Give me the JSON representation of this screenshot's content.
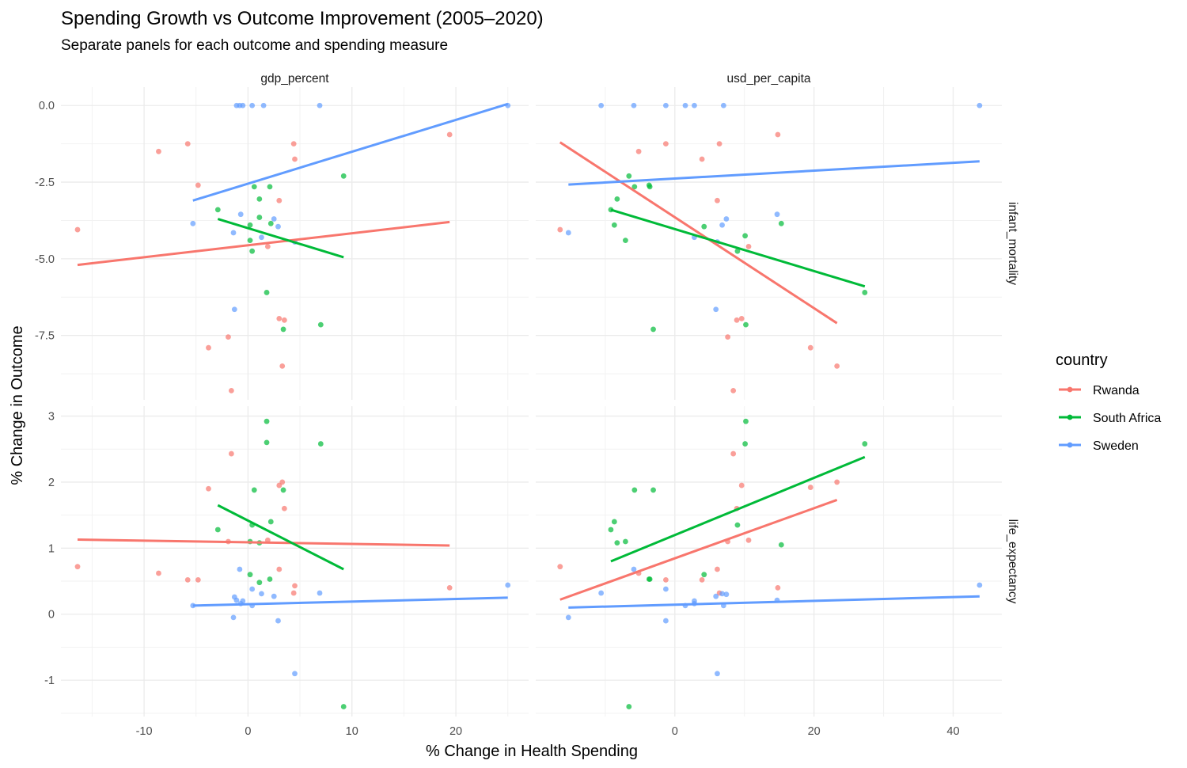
{
  "chart_data": {
    "type": "scatter",
    "title": "Spending Growth vs Outcome Improvement (2005–2020)",
    "subtitle": "Separate panels for each outcome and spending measure",
    "xlabel": "% Change in Health Spending",
    "ylabel": "% Change in Outcome",
    "grid": true,
    "legend": {
      "title": "country",
      "placement": "right",
      "entries": [
        {
          "name": "Rwanda",
          "color": "#F8766D"
        },
        {
          "name": "South Africa",
          "color": "#00BA38"
        },
        {
          "name": "Sweden",
          "color": "#619CFF"
        }
      ]
    },
    "columns": [
      {
        "strip": "gdp_percent",
        "xlim": [
          -18,
          27
        ],
        "xticks": [
          -10,
          0,
          10,
          20
        ],
        "xtick_labels": [
          "-10",
          "0",
          "10",
          "20"
        ]
      },
      {
        "strip": "usd_per_capita",
        "xlim": [
          -20,
          47
        ],
        "xticks": [
          0,
          20,
          40
        ],
        "xtick_labels": [
          "0",
          "20",
          "40"
        ]
      }
    ],
    "rows": [
      {
        "strip": "infant_mortality",
        "ylim": [
          -9.6,
          0.6
        ],
        "yticks": [
          0,
          -2.5,
          -5,
          -7.5
        ],
        "ytick_labels": [
          "0.0",
          "-2.5",
          "-5.0",
          "-7.5"
        ]
      },
      {
        "strip": "life_expectancy",
        "ylim": [
          -1.55,
          3.15
        ],
        "yticks": [
          3,
          2,
          1,
          0,
          -1
        ],
        "ytick_labels": [
          "3",
          "2",
          "1",
          "0",
          "-1"
        ]
      }
    ],
    "panels": [
      {
        "col": 0,
        "row": 0,
        "series": [
          {
            "name": "Rwanda",
            "points": [
              [
                -16.4,
                -4.05
              ],
              [
                -8.6,
                -1.5
              ],
              [
                -5.8,
                -1.25
              ],
              [
                -4.8,
                -2.6
              ],
              [
                -3.8,
                -7.9
              ],
              [
                -1.9,
                -7.55
              ],
              [
                -1.6,
                -9.3
              ],
              [
                1.9,
                -4.6
              ],
              [
                3.0,
                -3.1
              ],
              [
                3.0,
                -6.95
              ],
              [
                3.3,
                -8.5
              ],
              [
                3.5,
                -7.0
              ],
              [
                4.4,
                -1.25
              ],
              [
                4.5,
                -1.75
              ],
              [
                19.4,
                -0.95
              ]
            ],
            "fit": [
              [
                -16.4,
                -5.2
              ],
              [
                19.4,
                -3.8
              ]
            ]
          },
          {
            "name": "South Africa",
            "points": [
              [
                -2.9,
                -3.4
              ],
              [
                0.2,
                -3.9
              ],
              [
                0.2,
                -4.4
              ],
              [
                0.4,
                -4.75
              ],
              [
                0.6,
                -2.65
              ],
              [
                1.1,
                -3.05
              ],
              [
                1.1,
                -3.65
              ],
              [
                1.8,
                -6.1
              ],
              [
                2.1,
                -2.65
              ],
              [
                2.2,
                -3.85
              ],
              [
                3.4,
                -7.3
              ],
              [
                7.0,
                -7.15
              ],
              [
                9.2,
                -2.3
              ]
            ],
            "fit": [
              [
                -2.9,
                -3.7
              ],
              [
                9.2,
                -4.95
              ]
            ]
          },
          {
            "name": "Sweden",
            "points": [
              [
                -5.3,
                -3.85
              ],
              [
                -1.4,
                -4.15
              ],
              [
                -1.3,
                -6.65
              ],
              [
                -1.1,
                0.0
              ],
              [
                -0.8,
                0.0
              ],
              [
                -0.7,
                -3.55
              ],
              [
                -0.5,
                0.0
              ],
              [
                0.4,
                0.0
              ],
              [
                1.3,
                -4.3
              ],
              [
                1.5,
                0.0
              ],
              [
                2.5,
                -3.7
              ],
              [
                2.9,
                -3.95
              ],
              [
                4.5,
                -4.45
              ],
              [
                6.9,
                0.0
              ],
              [
                25.0,
                0.0
              ]
            ],
            "fit": [
              [
                -5.3,
                -3.1
              ],
              [
                25.0,
                0.05
              ]
            ]
          }
        ]
      },
      {
        "col": 1,
        "row": 0,
        "series": [
          {
            "name": "Rwanda",
            "points": [
              [
                -16.5,
                -4.05
              ],
              [
                -5.2,
                -1.5
              ],
              [
                -1.3,
                -1.25
              ],
              [
                3.9,
                -1.75
              ],
              [
                6.1,
                -3.1
              ],
              [
                6.4,
                -1.25
              ],
              [
                7.6,
                -7.55
              ],
              [
                8.4,
                -9.3
              ],
              [
                8.9,
                -7.0
              ],
              [
                9.6,
                -6.95
              ],
              [
                10.6,
                -4.6
              ],
              [
                14.8,
                -0.95
              ],
              [
                19.5,
                -7.9
              ],
              [
                23.3,
                -8.5
              ]
            ],
            "fit": [
              [
                -16.5,
                -1.2
              ],
              [
                23.3,
                -7.1
              ]
            ]
          },
          {
            "name": "South Africa",
            "points": [
              [
                -9.2,
                -3.4
              ],
              [
                -8.7,
                -3.9
              ],
              [
                -8.3,
                -3.05
              ],
              [
                -7.1,
                -4.4
              ],
              [
                -6.6,
                -2.3
              ],
              [
                -5.8,
                -2.65
              ],
              [
                -3.7,
                -2.6
              ],
              [
                -3.6,
                -2.65
              ],
              [
                -3.1,
                -7.3
              ],
              [
                4.2,
                -3.95
              ],
              [
                9.0,
                -4.75
              ],
              [
                10.1,
                -4.25
              ],
              [
                10.2,
                -7.15
              ],
              [
                15.3,
                -3.85
              ],
              [
                27.3,
                -6.1
              ]
            ],
            "fit": [
              [
                -9.2,
                -3.4
              ],
              [
                27.3,
                -5.9
              ]
            ]
          },
          {
            "name": "Sweden",
            "points": [
              [
                -15.3,
                -4.15
              ],
              [
                -10.6,
                0.0
              ],
              [
                -5.9,
                0.0
              ],
              [
                -1.3,
                0.0
              ],
              [
                1.5,
                0.0
              ],
              [
                2.8,
                0.0
              ],
              [
                2.8,
                -4.3
              ],
              [
                5.9,
                -6.65
              ],
              [
                6.1,
                -4.45
              ],
              [
                6.8,
                -3.9
              ],
              [
                7.0,
                0.0
              ],
              [
                7.4,
                -3.7
              ],
              [
                14.7,
                -3.55
              ],
              [
                43.8,
                0.0
              ]
            ],
            "fit": [
              [
                -15.3,
                -2.58
              ],
              [
                43.8,
                -1.82
              ]
            ]
          }
        ]
      },
      {
        "col": 0,
        "row": 1,
        "series": [
          {
            "name": "Rwanda",
            "points": [
              [
                -16.4,
                0.72
              ],
              [
                -8.6,
                0.62
              ],
              [
                -5.8,
                0.52
              ],
              [
                -4.8,
                0.52
              ],
              [
                -3.8,
                1.9
              ],
              [
                -1.9,
                1.1
              ],
              [
                -1.6,
                2.43
              ],
              [
                1.9,
                1.12
              ],
              [
                3.0,
                0.68
              ],
              [
                3.0,
                1.95
              ],
              [
                3.3,
                2.0
              ],
              [
                3.5,
                1.6
              ],
              [
                4.4,
                0.32
              ],
              [
                4.5,
                0.43
              ],
              [
                19.4,
                0.4
              ]
            ],
            "fit": [
              [
                -16.4,
                1.13
              ],
              [
                19.4,
                1.04
              ]
            ]
          },
          {
            "name": "South Africa",
            "points": [
              [
                -2.9,
                1.28
              ],
              [
                0.2,
                0.6
              ],
              [
                0.2,
                1.1
              ],
              [
                0.4,
                1.35
              ],
              [
                0.6,
                1.88
              ],
              [
                1.1,
                1.08
              ],
              [
                1.1,
                0.48
              ],
              [
                1.8,
                2.92
              ],
              [
                2.1,
                0.53
              ],
              [
                2.2,
                1.4
              ],
              [
                3.4,
                1.88
              ],
              [
                7.0,
                2.58
              ],
              [
                9.2,
                -1.4
              ],
              [
                1.8,
                2.6
              ]
            ],
            "fit": [
              [
                -2.9,
                1.65
              ],
              [
                9.2,
                0.68
              ]
            ]
          },
          {
            "name": "Sweden",
            "points": [
              [
                -5.3,
                0.13
              ],
              [
                -1.4,
                -0.05
              ],
              [
                -1.3,
                0.26
              ],
              [
                -1.1,
                0.21
              ],
              [
                -0.8,
                0.68
              ],
              [
                -0.7,
                0.16
              ],
              [
                -0.5,
                0.2
              ],
              [
                0.4,
                0.13
              ],
              [
                0.4,
                0.38
              ],
              [
                1.3,
                0.31
              ],
              [
                2.5,
                0.27
              ],
              [
                2.9,
                -0.1
              ],
              [
                4.5,
                -0.9
              ],
              [
                6.9,
                0.32
              ],
              [
                25.0,
                0.44
              ]
            ],
            "fit": [
              [
                -5.3,
                0.13
              ],
              [
                25.0,
                0.25
              ]
            ]
          }
        ]
      },
      {
        "col": 1,
        "row": 1,
        "series": [
          {
            "name": "Rwanda",
            "points": [
              [
                -16.5,
                0.72
              ],
              [
                -5.2,
                0.62
              ],
              [
                -1.3,
                0.52
              ],
              [
                3.9,
                0.52
              ],
              [
                6.1,
                0.68
              ],
              [
                6.4,
                0.32
              ],
              [
                7.6,
                1.1
              ],
              [
                8.4,
                2.43
              ],
              [
                8.9,
                1.6
              ],
              [
                9.6,
                1.95
              ],
              [
                10.6,
                1.12
              ],
              [
                14.8,
                0.4
              ],
              [
                19.5,
                1.92
              ],
              [
                23.3,
                2.0
              ]
            ],
            "fit": [
              [
                -16.5,
                0.22
              ],
              [
                23.3,
                1.73
              ]
            ]
          },
          {
            "name": "South Africa",
            "points": [
              [
                -9.2,
                1.28
              ],
              [
                -8.7,
                1.4
              ],
              [
                -8.3,
                1.08
              ],
              [
                -7.1,
                1.1
              ],
              [
                -6.6,
                -1.4
              ],
              [
                -5.8,
                1.88
              ],
              [
                -3.7,
                0.53
              ],
              [
                -3.6,
                0.53
              ],
              [
                -3.1,
                1.88
              ],
              [
                4.2,
                0.6
              ],
              [
                9.0,
                1.35
              ],
              [
                10.1,
                2.58
              ],
              [
                10.2,
                2.92
              ],
              [
                15.3,
                1.05
              ],
              [
                27.3,
                2.58
              ]
            ],
            "fit": [
              [
                -9.2,
                0.8
              ],
              [
                27.3,
                2.38
              ]
            ]
          },
          {
            "name": "Sweden",
            "points": [
              [
                -15.3,
                -0.05
              ],
              [
                -10.6,
                0.32
              ],
              [
                -5.9,
                0.68
              ],
              [
                -1.3,
                0.38
              ],
              [
                -1.3,
                -0.1
              ],
              [
                1.5,
                0.13
              ],
              [
                2.8,
                0.16
              ],
              [
                2.8,
                0.2
              ],
              [
                5.9,
                0.27
              ],
              [
                6.1,
                -0.9
              ],
              [
                6.8,
                0.31
              ],
              [
                7.0,
                0.13
              ],
              [
                7.4,
                0.3
              ],
              [
                14.7,
                0.21
              ],
              [
                43.8,
                0.44
              ]
            ],
            "fit": [
              [
                -15.3,
                0.1
              ],
              [
                43.8,
                0.27
              ]
            ]
          }
        ]
      }
    ]
  }
}
